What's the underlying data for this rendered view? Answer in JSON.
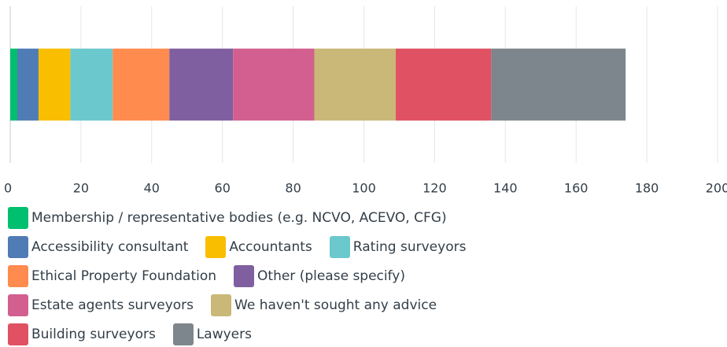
{
  "chart_data": {
    "type": "stacked-bar-horizontal",
    "categories": [
      null
    ],
    "series": [
      {
        "name": "Membership / representative bodies (e.g. NCVO, ACEVO, CFG)",
        "color": "#00bf6f",
        "values": [
          2
        ]
      },
      {
        "name": "Accessibility consultant",
        "color": "#507cb6",
        "values": [
          6
        ]
      },
      {
        "name": "Accountants",
        "color": "#f9be00",
        "values": [
          9
        ]
      },
      {
        "name": "Rating surveyors",
        "color": "#6bc8cd",
        "values": [
          12
        ]
      },
      {
        "name": "Ethical Property Foundation",
        "color": "#ff8b4f",
        "values": [
          16
        ]
      },
      {
        "name": "Other (please specify)",
        "color": "#7f5fa0",
        "values": [
          18
        ]
      },
      {
        "name": "Estate agents surveyors",
        "color": "#d25f90",
        "values": [
          23
        ]
      },
      {
        "name": "We haven't sought any advice",
        "color": "#c9b877",
        "values": [
          23
        ]
      },
      {
        "name": "Building surveyors",
        "color": "#e05263",
        "values": [
          27
        ]
      },
      {
        "name": "Lawyers",
        "color": "#7d868c",
        "values": [
          38
        ]
      }
    ],
    "xlim": [
      0,
      200
    ],
    "xticks": [
      0,
      20,
      40,
      60,
      80,
      100,
      120,
      140,
      160,
      180,
      200
    ],
    "grid": true
  }
}
